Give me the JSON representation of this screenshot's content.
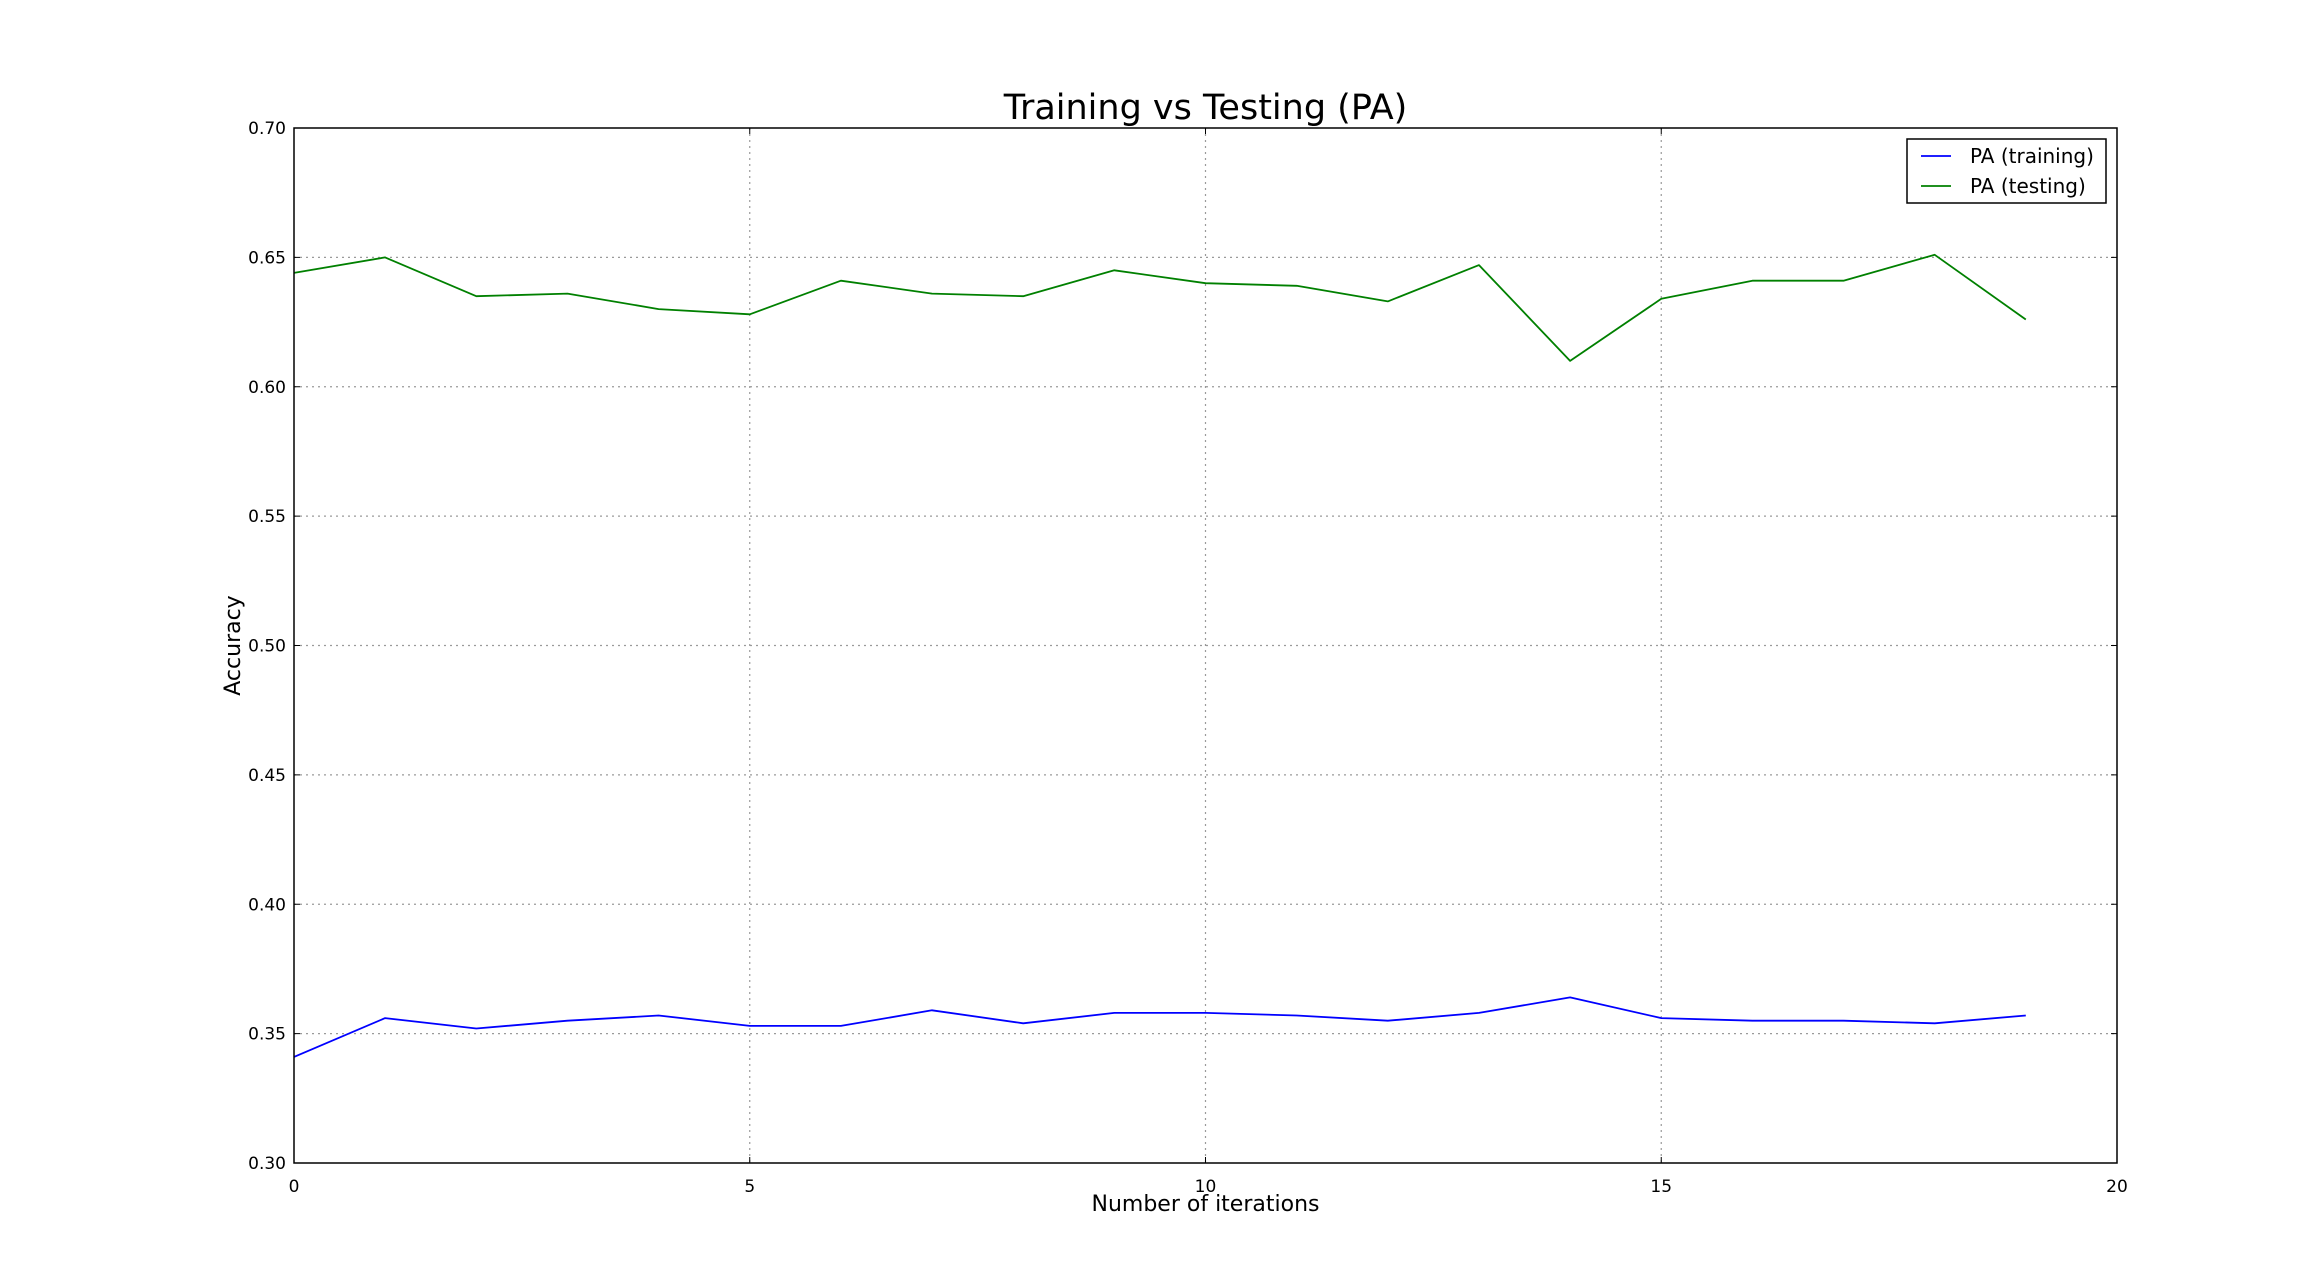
{
  "chart_data": {
    "type": "line",
    "title": "Training vs Testing (PA)",
    "xlabel": "Number of iterations",
    "ylabel": "Accuracy",
    "xlim": [
      0,
      20
    ],
    "ylim": [
      0.3,
      0.7
    ],
    "xticks": [
      0,
      5,
      10,
      15,
      20
    ],
    "yticks": [
      0.3,
      0.35,
      0.4,
      0.45,
      0.5,
      0.55,
      0.6,
      0.65,
      0.7
    ],
    "xtick_labels": [
      "0",
      "5",
      "10",
      "15",
      "20"
    ],
    "ytick_labels": [
      "0.30",
      "0.35",
      "0.40",
      "0.45",
      "0.50",
      "0.55",
      "0.60",
      "0.65",
      "0.70"
    ],
    "grid": true,
    "legend_position": "top-right",
    "x": [
      0,
      1,
      2,
      3,
      4,
      5,
      6,
      7,
      8,
      9,
      10,
      11,
      12,
      13,
      14,
      15,
      16,
      17,
      18,
      19
    ],
    "series": [
      {
        "name": "PA (training)",
        "color": "#0000ff",
        "values": [
          0.341,
          0.356,
          0.352,
          0.355,
          0.357,
          0.353,
          0.353,
          0.359,
          0.354,
          0.358,
          0.358,
          0.357,
          0.355,
          0.358,
          0.364,
          0.356,
          0.355,
          0.355,
          0.354,
          0.357
        ]
      },
      {
        "name": "PA (testing)",
        "color": "#008000",
        "values": [
          0.644,
          0.65,
          0.635,
          0.636,
          0.63,
          0.628,
          0.641,
          0.636,
          0.635,
          0.645,
          0.64,
          0.639,
          0.633,
          0.647,
          0.61,
          0.634,
          0.641,
          0.641,
          0.651,
          0.626
        ]
      }
    ]
  }
}
